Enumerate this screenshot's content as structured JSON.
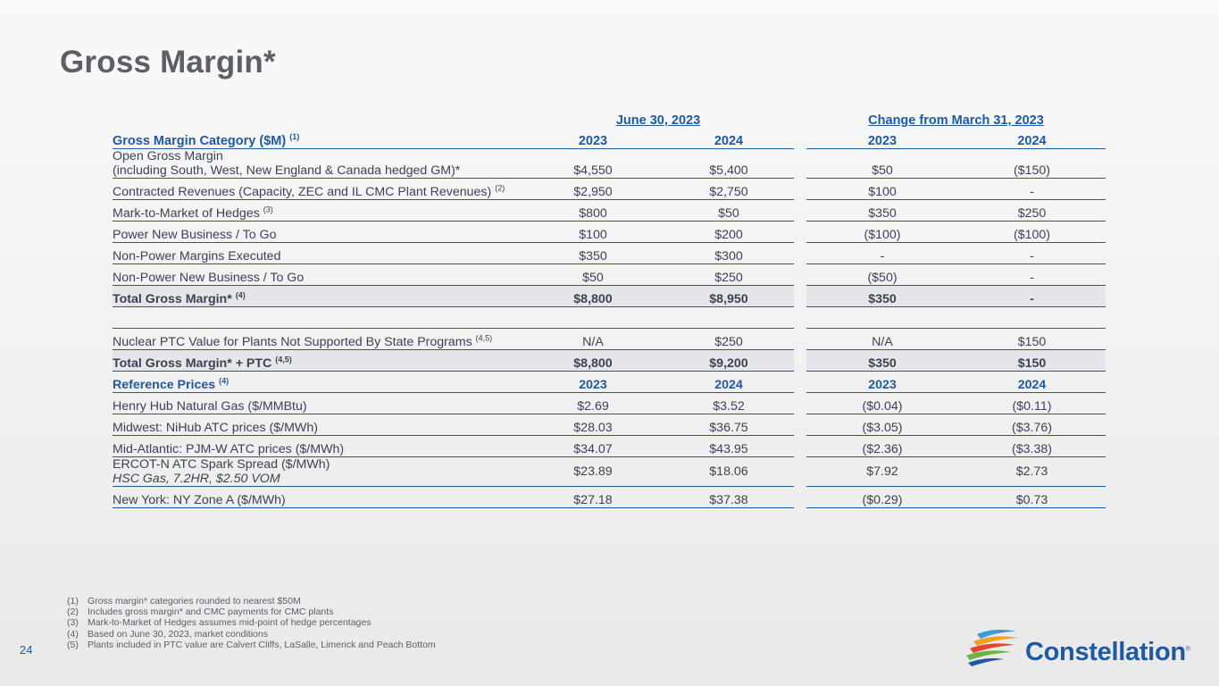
{
  "title": "Gross Margin*",
  "table": {
    "group_june": "June 30, 2023",
    "group_change": "Change from March 31, 2023",
    "category_header": "Gross Margin Category ($M)",
    "category_header_note": "(1)",
    "years": [
      "2023",
      "2024",
      "2023",
      "2024"
    ],
    "rows": [
      {
        "label_line1": "Open Gross Margin",
        "label_line2": "(including South, West, New England & Canada hedged GM)*",
        "note": "",
        "values": [
          "$4,550",
          "$5,400",
          "$50",
          "($150)"
        ]
      },
      {
        "label": "Contracted Revenues (Capacity, ZEC and IL CMC Plant Revenues)",
        "note": "(2)",
        "values": [
          "$2,950",
          "$2,750",
          "$100",
          "-"
        ]
      },
      {
        "label": "Mark-to-Market of Hedges",
        "note": "(3)",
        "values": [
          "$800",
          "$50",
          "$350",
          "$250"
        ]
      },
      {
        "label": "Power New Business / To Go",
        "note": "",
        "values": [
          "$100",
          "$200",
          "($100)",
          "($100)"
        ]
      },
      {
        "label": "Non-Power Margins Executed",
        "note": "",
        "values": [
          "$350",
          "$300",
          "-",
          "-"
        ]
      },
      {
        "label": "Non-Power New Business / To Go",
        "note": "",
        "values": [
          "$50",
          "$250",
          "($50)",
          "-"
        ]
      }
    ],
    "total": {
      "label": "Total Gross Margin*",
      "note": "(4)",
      "values": [
        "$8,800",
        "$8,950",
        "$350",
        "-"
      ]
    },
    "ptc": {
      "label": "Nuclear PTC Value for Plants Not Supported By State Programs",
      "note": "(4,5)",
      "values": [
        "N/A",
        "$250",
        "N/A",
        "$150"
      ]
    },
    "total_ptc": {
      "label": "Total Gross Margin* + PTC",
      "note": "(4,5)",
      "values": [
        "$8,800",
        "$9,200",
        "$350",
        "$150"
      ]
    },
    "reference_header": "Reference Prices",
    "reference_note": "(4)",
    "reference": [
      {
        "label": "Henry Hub Natural Gas ($/MMBtu)",
        "values": [
          "$2.69",
          "$3.52",
          "($0.04)",
          "($0.11)"
        ]
      },
      {
        "label": "Midwest: NiHub ATC prices ($/MWh)",
        "values": [
          "$28.03",
          "$36.75",
          "($3.05)",
          "($3.76)"
        ]
      },
      {
        "label": "Mid-Atlantic: PJM-W ATC prices ($/MWh)",
        "values": [
          "$34.07",
          "$43.95",
          "($2.36)",
          "($3.38)"
        ]
      },
      {
        "label": "ERCOT-N ATC Spark Spread ($/MWh)",
        "sublabel": "HSC Gas, 7.2HR, $2.50 VOM",
        "values": [
          "$23.89",
          "$18.06",
          "$7.92",
          "$2.73"
        ]
      },
      {
        "label": "New York: NY Zone A ($/MWh)",
        "values": [
          "$27.18",
          "$37.38",
          "($0.29)",
          "$0.73"
        ]
      }
    ]
  },
  "footnotes": [
    {
      "key": "(1)",
      "text": "Gross margin* categories rounded to nearest $50M"
    },
    {
      "key": "(2)",
      "text": "Includes gross margin* and CMC payments for CMC plants"
    },
    {
      "key": "(3)",
      "text": "Mark-to-Market of Hedges assumes mid-point of hedge percentages"
    },
    {
      "key": "(4)",
      "text": "Based on June 30, 2023, market conditions"
    },
    {
      "key": "(5)",
      "text": "Plants included in PTC value are Calvert Cliffs, LaSalle, Limerick and Peach Bottom"
    }
  ],
  "page_number": "24",
  "logo": {
    "name": "Constellation",
    "mark": "®"
  },
  "colors": {
    "accent": "#1e5aa0",
    "text": "#3b4250",
    "total_bg": "#e4e6e9"
  }
}
